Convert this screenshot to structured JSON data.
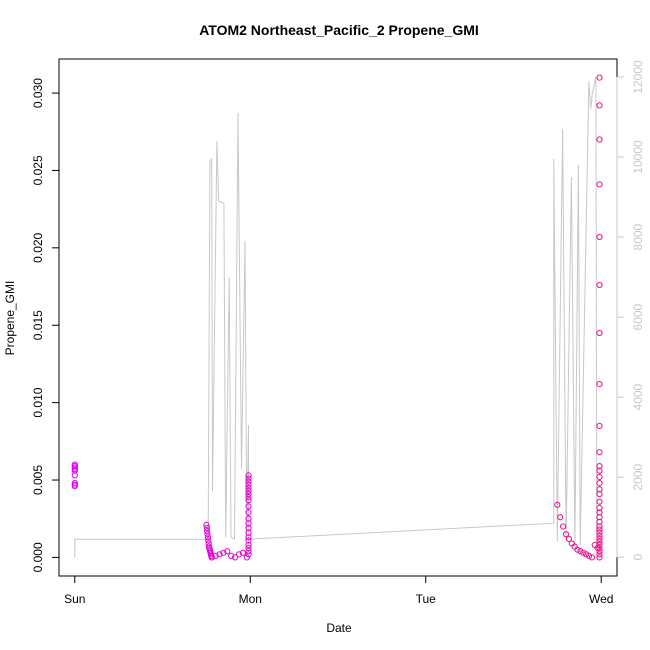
{
  "chart_data": {
    "type": "scatter",
    "title": "ATOM2 Northeast_Pacific_2 Propene_GMI",
    "xlabel": "Date",
    "ylabel": "Propene_GMI",
    "x_ticks": [
      {
        "label": "Sun",
        "day": 0
      },
      {
        "label": "Mon",
        "day": 1
      },
      {
        "label": "Tue",
        "day": 2
      },
      {
        "label": "Wed",
        "day": 3
      }
    ],
    "xlim": [
      -0.09,
      3.09
    ],
    "ylim": [
      -0.0012,
      0.0322
    ],
    "y_ticks": [
      0.0,
      0.005,
      0.01,
      0.015,
      0.02,
      0.025,
      0.03
    ],
    "y_tick_labels": [
      "0.000",
      "0.005",
      "0.010",
      "0.015",
      "0.020",
      "0.025",
      "0.030"
    ],
    "y2lim": [
      -470,
      12450
    ],
    "y2_ticks": [
      0,
      2000,
      4000,
      6000,
      8000,
      10000,
      12000
    ],
    "y2_tick_labels": [
      "0",
      "2000",
      "4000",
      "6000",
      "8000",
      "10000",
      "12000"
    ],
    "grid": false,
    "colors": {
      "points_start": "#dd00ee",
      "points_end": "#ee1188",
      "altitude_line": "#c8c8c8",
      "secondary_axis": "#c8c8c8",
      "axis": "#000000"
    },
    "series": [
      {
        "kind": "points",
        "segments": [
          {
            "day": 0.0,
            "values": [
              0.006,
              0.0059,
              0.0058,
              0.0057,
              0.0056,
              0.0053,
              0.0048,
              0.0047,
              0.0046
            ]
          },
          {
            "day": [
              0.75,
              0.78
            ],
            "values": [
              0.0021,
              0.0019,
              0.0017,
              0.0015,
              0.0013,
              0.0011,
              0.0009,
              0.0007,
              0.0006,
              0.0005,
              0.0004,
              0.0003,
              0.0002,
              0.0001,
              0.0
            ]
          },
          {
            "day": [
              0.78,
              0.98
            ],
            "values": [
              0.0,
              0.0001,
              0.0002,
              0.0003,
              0.0004,
              0.0001,
              0.0,
              0.0002,
              0.0003,
              0.0
            ]
          },
          {
            "day": 0.99,
            "values": [
              0.0053,
              0.0051,
              0.0049,
              0.0047,
              0.0045,
              0.0043,
              0.0041,
              0.0039,
              0.0037,
              0.0033,
              0.0029,
              0.0025,
              0.0022,
              0.0019,
              0.0016,
              0.0013,
              0.0011,
              0.0008,
              0.0006,
              0.0004,
              0.0002
            ]
          },
          {
            "day": [
              2.75,
              2.98
            ],
            "values": [
              0.0034,
              0.0026,
              0.002,
              0.0015,
              0.0012,
              0.0009,
              0.0007,
              0.0005,
              0.0004,
              0.0003,
              0.0002,
              0.0001,
              0.0,
              0.0008,
              0.0006
            ]
          },
          {
            "day": 2.99,
            "values": [
              0.031,
              0.0292,
              0.027,
              0.0241,
              0.0207,
              0.0176,
              0.0145,
              0.0112,
              0.0085,
              0.0068,
              0.0059,
              0.0056,
              0.0052,
              0.0048,
              0.0044,
              0.0041,
              0.0036,
              0.0032,
              0.0029,
              0.0026,
              0.0023,
              0.002,
              0.0018,
              0.0016,
              0.0014,
              0.0012,
              0.001,
              0.0008,
              0.0006,
              0.0004,
              0.0002,
              0.0
            ]
          }
        ]
      },
      {
        "kind": "line",
        "axis": "secondary",
        "points": [
          [
            0.0,
            0
          ],
          [
            0.0,
            450
          ],
          [
            0.77,
            450
          ],
          [
            0.76,
            500
          ],
          [
            0.77,
            9900
          ],
          [
            0.78,
            9950
          ],
          [
            0.785,
            1650
          ],
          [
            0.81,
            10400
          ],
          [
            0.82,
            8900
          ],
          [
            0.85,
            8850
          ],
          [
            0.86,
            500
          ],
          [
            0.88,
            7000
          ],
          [
            0.89,
            500
          ],
          [
            0.91,
            450
          ],
          [
            0.93,
            11100
          ],
          [
            0.95,
            2200
          ],
          [
            0.97,
            7900
          ],
          [
            0.98,
            500
          ],
          [
            0.99,
            3300
          ],
          [
            0.99,
            300
          ],
          [
            0.99,
            450
          ],
          [
            2.73,
            850
          ],
          [
            2.73,
            9950
          ],
          [
            2.75,
            400
          ],
          [
            2.78,
            10700
          ],
          [
            2.8,
            400
          ],
          [
            2.83,
            9500
          ],
          [
            2.85,
            300
          ],
          [
            2.87,
            9800
          ],
          [
            2.88,
            300
          ],
          [
            2.93,
            11900
          ],
          [
            2.94,
            11200
          ],
          [
            2.95,
            11600
          ],
          [
            2.97,
            12000
          ],
          [
            2.975,
            400
          ]
        ]
      }
    ]
  }
}
